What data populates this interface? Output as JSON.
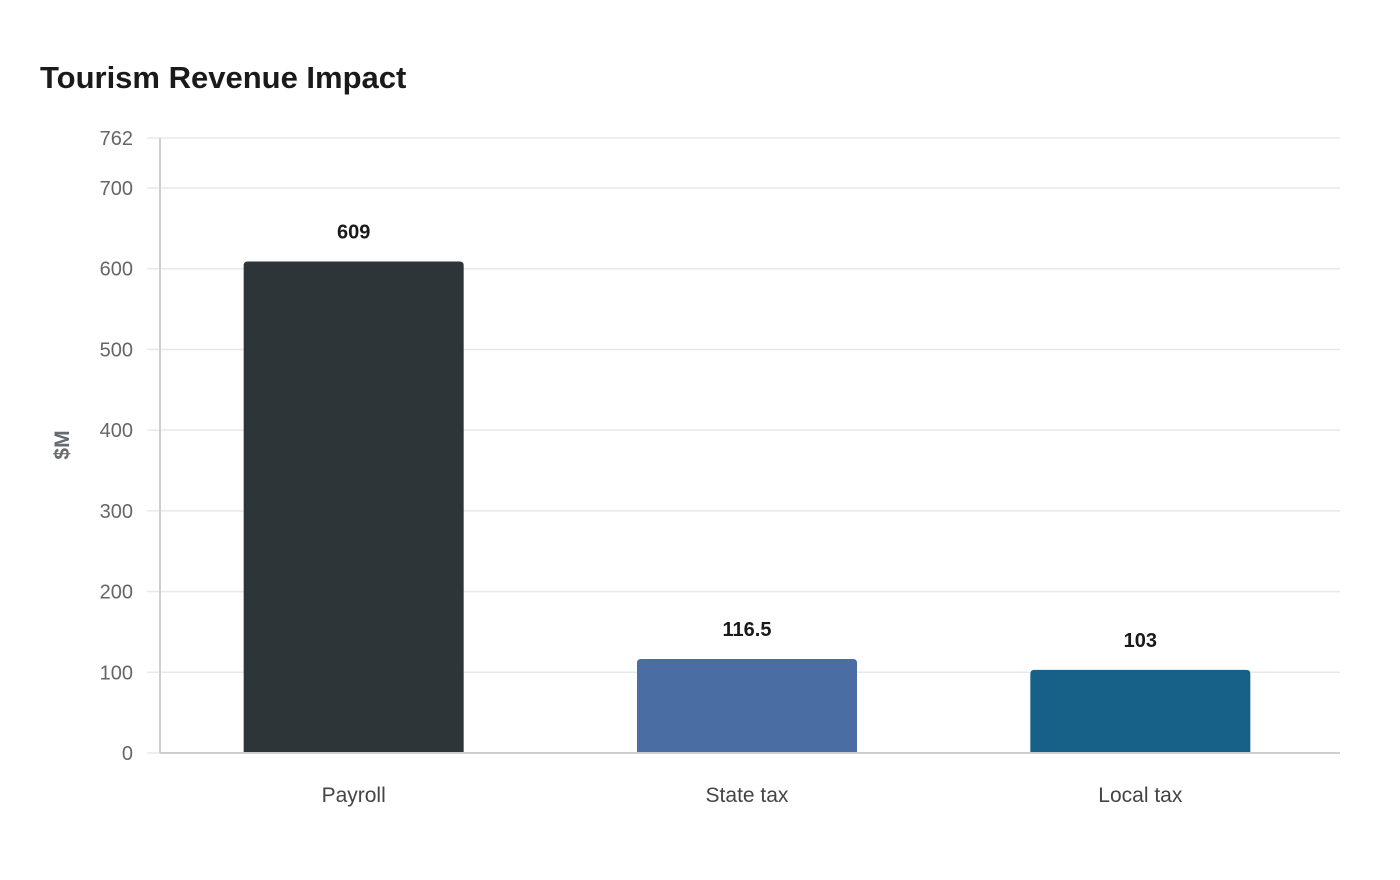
{
  "chart_data": {
    "type": "bar",
    "title": "Tourism Revenue Impact",
    "xlabel": "",
    "ylabel": "$M",
    "categories": [
      "Payroll",
      "State tax",
      "Local tax"
    ],
    "values": [
      609,
      116.5,
      103
    ],
    "value_labels": [
      "609",
      "116.5",
      "103"
    ],
    "colors": [
      "#2e3538",
      "#4a6ea4",
      "#176087"
    ],
    "ylim": [
      0,
      762
    ],
    "yticks": [
      0,
      100,
      200,
      300,
      400,
      500,
      600,
      700,
      762
    ],
    "grid": true,
    "legend": "none"
  }
}
